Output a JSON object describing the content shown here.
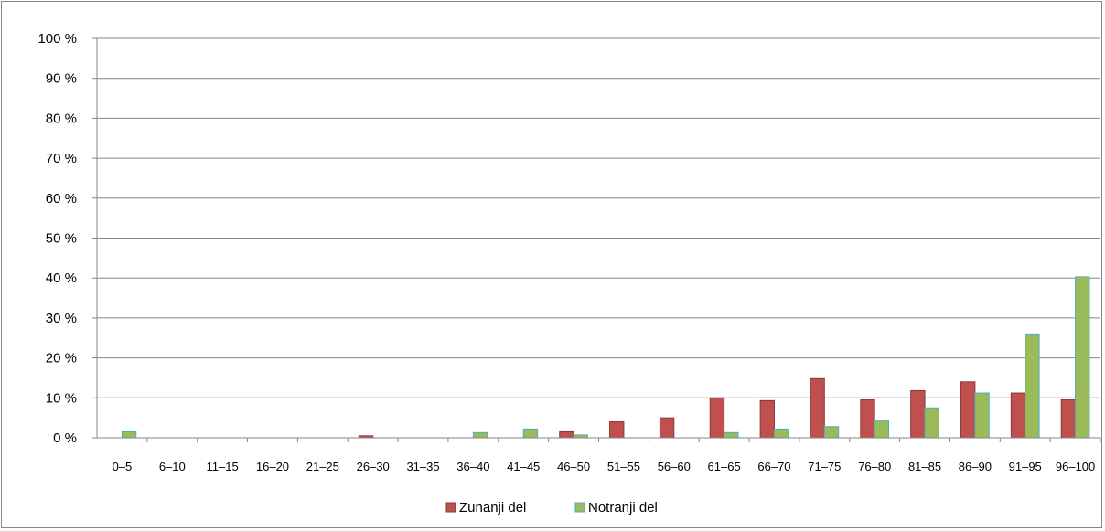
{
  "chart_data": {
    "type": "bar",
    "title": "",
    "xlabel": "",
    "ylabel": "",
    "ylim": [
      0,
      100
    ],
    "y_ticks": [
      "0 %",
      "10 %",
      "20 %",
      "30 %",
      "40 %",
      "50 %",
      "60 %",
      "70 %",
      "80 %",
      "90 %",
      "100 %"
    ],
    "categories": [
      "0–5",
      "6–10",
      "11–15",
      "16–20",
      "21–25",
      "26–30",
      "31–35",
      "36–40",
      "41–45",
      "46–50",
      "51–55",
      "56–60",
      "61–65",
      "66–70",
      "71–75",
      "76–80",
      "81–85",
      "86–90",
      "91–95",
      "96–100"
    ],
    "series": [
      {
        "name": "Zunanji del",
        "color": "#C0504D",
        "values": [
          0,
          0,
          0,
          0,
          0,
          0.5,
          0,
          0,
          0,
          1.5,
          4,
          5,
          10,
          9.3,
          14.8,
          9.5,
          11.8,
          14,
          11.2,
          9.5
        ]
      },
      {
        "name": "Notranji del",
        "color": "#9BBB59",
        "values": [
          1.5,
          0,
          0,
          0,
          0,
          0,
          0,
          1.3,
          2.2,
          0.7,
          0,
          0,
          1.3,
          2.2,
          2.8,
          4.2,
          7.5,
          11.2,
          26,
          40.3
        ]
      }
    ],
    "grid": true,
    "legend": "bottom"
  }
}
